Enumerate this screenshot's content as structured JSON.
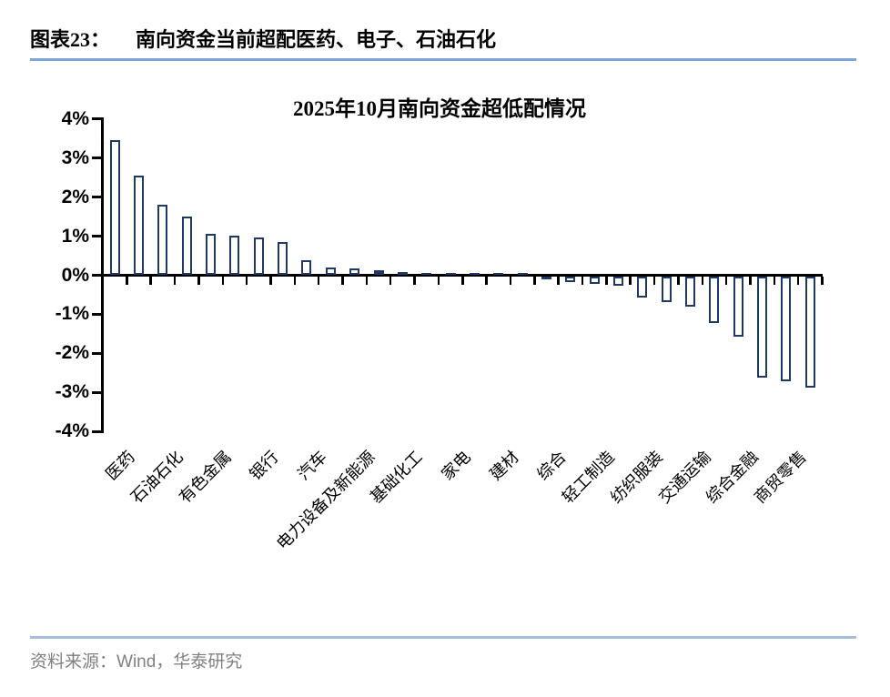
{
  "header": {
    "figure_label": "图表23：",
    "figure_title": "南向资金当前超配医药、电子、石油石化"
  },
  "footer": {
    "source_label": "资料来源：",
    "source_text": "Wind，华泰研究"
  },
  "colors": {
    "header_rule": "#7da7d9",
    "footer_rule": "#a6bedb",
    "bar_border": "#1f3864",
    "bar_fill": "#ffffff",
    "axis": "#000000",
    "source_text": "#808080"
  },
  "chart_data": {
    "type": "bar",
    "title": "2025年10月南向资金超低配情况",
    "xlabel": "",
    "ylabel": "",
    "ylim": [
      -4,
      4
    ],
    "yticks": [
      4,
      3,
      2,
      1,
      0,
      -1,
      -2,
      -3,
      -4
    ],
    "ytick_labels": [
      "4%",
      "3%",
      "2%",
      "1%",
      "0%",
      "-1%",
      "-2%",
      "-3%",
      "-4%"
    ],
    "grid": false,
    "legend": false,
    "bar_style": "outlined-white-fill",
    "note": "30 bars; only every other category tick is labeled",
    "categories": [
      "医药",
      "",
      "石油石化",
      "",
      "有色金属",
      "",
      "银行",
      "",
      "汽车",
      "",
      "电力设备及新能源",
      "",
      "基础化工",
      "",
      "家电",
      "",
      "建材",
      "",
      "综合",
      "",
      "轻工制造",
      "",
      "纺织服装",
      "",
      "交通运输",
      "",
      "综合金融",
      "",
      "商贸零售",
      ""
    ],
    "values": [
      3.45,
      2.55,
      1.8,
      1.5,
      1.05,
      1.0,
      0.95,
      0.85,
      0.37,
      0.18,
      0.16,
      0.12,
      0.07,
      0.05,
      0.04,
      0.03,
      0.02,
      0.03,
      -0.08,
      -0.15,
      -0.2,
      -0.25,
      -0.55,
      -0.67,
      -0.78,
      -1.2,
      -1.55,
      -2.6,
      -2.7,
      -2.85
    ]
  }
}
